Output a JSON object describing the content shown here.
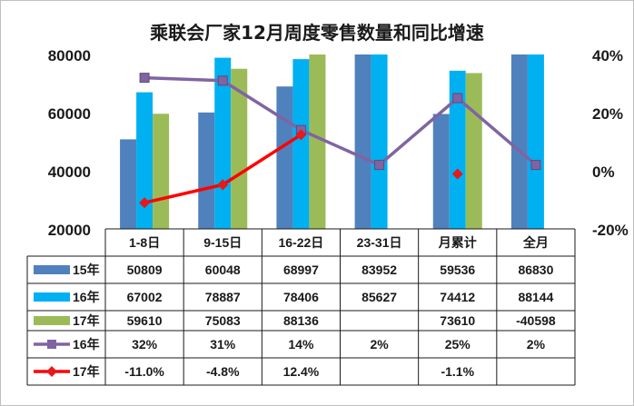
{
  "chart_data": {
    "type": "bar",
    "title": "乘联会厂家12月周度零售数量和同比增速",
    "categories": [
      "1-8日",
      "9-15日",
      "16-22日",
      "23-31日",
      "月累计",
      "全月"
    ],
    "y_left": {
      "min": 20000,
      "max": 80000,
      "ticks": [
        "80000",
        "60000",
        "40000",
        "20000"
      ],
      "tick_values": [
        80000,
        60000,
        40000,
        20000
      ]
    },
    "y_right": {
      "min": -20,
      "max": 40,
      "ticks": [
        "40%",
        "20%",
        "0%",
        "-20%"
      ],
      "tick_values": [
        40,
        20,
        0,
        -20
      ]
    },
    "bar_series": [
      {
        "name": "15年",
        "color": "#4f81bd",
        "values": [
          50809,
          60048,
          68997,
          83952,
          59536,
          86830
        ],
        "labels": [
          "50809",
          "60048",
          "68997",
          "83952",
          "59536",
          "86830"
        ]
      },
      {
        "name": "16年",
        "color": "#00b0f0",
        "values": [
          67002,
          78887,
          78406,
          85627,
          74412,
          88144
        ],
        "labels": [
          "67002",
          "78887",
          "78406",
          "85627",
          "74412",
          "88144"
        ]
      },
      {
        "name": "17年",
        "color": "#9bbb59",
        "values": [
          59610,
          75083,
          88136,
          null,
          73610,
          -40598
        ],
        "labels": [
          "59610",
          "75083",
          "88136",
          "",
          "73610",
          "-40598"
        ]
      }
    ],
    "line_series": [
      {
        "name": "16年",
        "color": "#8064a2",
        "marker": "square",
        "values": [
          32,
          31,
          14,
          2,
          25,
          2
        ],
        "labels": [
          "32%",
          "31%",
          "14%",
          "2%",
          "25%",
          "2%"
        ],
        "connect": [
          0,
          1,
          2,
          3,
          4,
          5
        ]
      },
      {
        "name": "17年",
        "color": "#ff0000",
        "marker_color": "#e41a1c",
        "marker": "diamond",
        "values": [
          -11.0,
          -4.8,
          12.4,
          null,
          -1.1,
          null
        ],
        "labels": [
          "-11.0%",
          "-4.8%",
          "12.4%",
          "",
          "-1.1%",
          ""
        ],
        "connect": [
          0,
          1,
          2
        ]
      }
    ],
    "grid": false,
    "legend": "table-below"
  }
}
